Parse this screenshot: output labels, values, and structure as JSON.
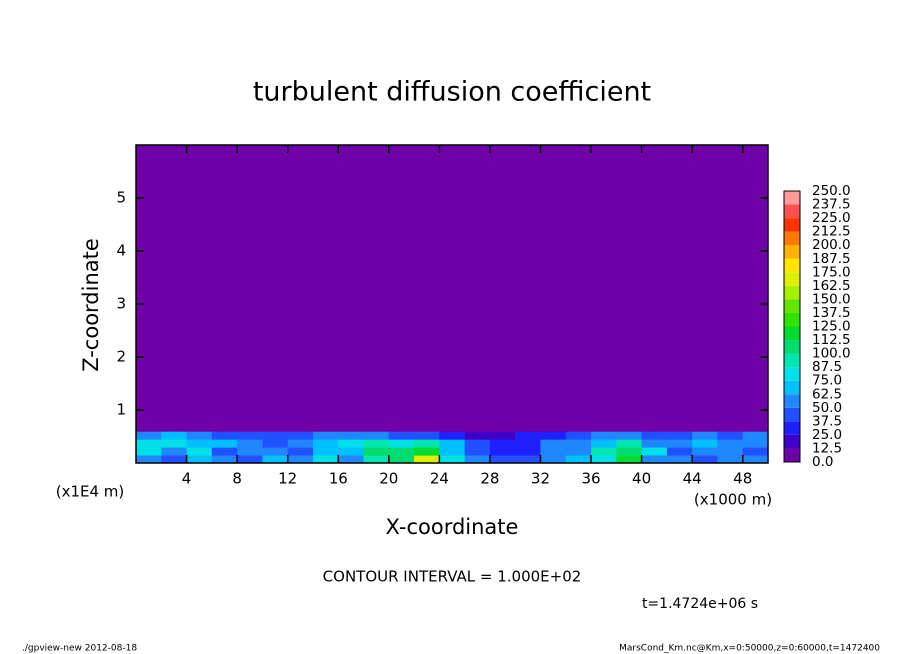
{
  "chart_data": {
    "type": "heatmap",
    "title": "turbulent diffusion coefficient",
    "xlabel": "X-coordinate",
    "ylabel": "Z-coordinate",
    "xunit": "(x1000 m)",
    "yunit": "(x1E4 m)",
    "xlim": [
      0,
      50
    ],
    "ylim": [
      0,
      6
    ],
    "xticks": [
      4,
      8,
      12,
      16,
      20,
      24,
      28,
      32,
      36,
      40,
      44,
      48
    ],
    "yticks": [
      1,
      2,
      3,
      4,
      5
    ],
    "x_edges": [
      0,
      2,
      4,
      6,
      8,
      10,
      12,
      14,
      16,
      18,
      20,
      22,
      24,
      26,
      28,
      30,
      32,
      34,
      36,
      38,
      40,
      42,
      44,
      46,
      48,
      50
    ],
    "z_edges": [
      0,
      0.15,
      0.3,
      0.45,
      0.6,
      6
    ],
    "values": [
      [
        60,
        45,
        70,
        55,
        40,
        65,
        50,
        75,
        60,
        95,
        110,
        170,
        80,
        55,
        45,
        40,
        60,
        70,
        85,
        120,
        60,
        50,
        45,
        55,
        50
      ],
      [
        75,
        60,
        80,
        45,
        55,
        50,
        40,
        65,
        70,
        100,
        105,
        115,
        70,
        45,
        35,
        30,
        50,
        55,
        90,
        110,
        75,
        40,
        60,
        50,
        45
      ],
      [
        80,
        85,
        70,
        65,
        50,
        45,
        60,
        70,
        80,
        90,
        85,
        95,
        65,
        40,
        30,
        35,
        55,
        60,
        70,
        95,
        60,
        50,
        65,
        55,
        60
      ],
      [
        55,
        65,
        50,
        45,
        40,
        40,
        45,
        50,
        55,
        60,
        45,
        40,
        30,
        20,
        15,
        25,
        30,
        45,
        50,
        55,
        45,
        40,
        50,
        45,
        50
      ],
      [
        5,
        5,
        5,
        5,
        5,
        5,
        5,
        5,
        5,
        5,
        5,
        5,
        5,
        5,
        5,
        5,
        5,
        5,
        5,
        5,
        5,
        5,
        5,
        5,
        5
      ]
    ],
    "levels": [
      {
        "value": 0,
        "label": "0.0"
      },
      12.5,
      {
        "value": 25,
        "label": "25.0"
      },
      37.5,
      {
        "value": 50,
        "label": "50.0"
      },
      62.5,
      {
        "value": 75,
        "label": "75.0"
      },
      87.5,
      {
        "value": 100,
        "label": "100.0"
      },
      112.5,
      {
        "value": 125,
        "label": "125.0"
      },
      137.5,
      {
        "value": 150,
        "label": "150.0"
      },
      162.5,
      {
        "value": 175,
        "label": "175.0"
      },
      187.5,
      {
        "value": 200,
        "label": "200.0"
      },
      212.5,
      {
        "value": 225,
        "label": "225.0"
      },
      237.5,
      {
        "value": 250,
        "label": "250.0"
      }
    ],
    "colors": [
      "#7000a8",
      "#4000c8",
      "#2020ff",
      "#2050ff",
      "#2088ff",
      "#00c0ff",
      "#00e0e8",
      "#00e6b0",
      "#00dc70",
      "#00dc30",
      "#30e400",
      "#60e600",
      "#a8f000",
      "#dcf000",
      "#ffe600",
      "#ffb400",
      "#ff7800",
      "#ff3200",
      "#ff5050",
      "#ff9a9a"
    ],
    "annotations": [
      "CONTOUR INTERVAL = 1.000E+02",
      "t=1.4724e+06 s"
    ],
    "footer_left": "./gpview-new   2012-08-18",
    "footer_right": "MarsCond_Km.nc@Km,x=0:50000,z=0:60000,t=1472400"
  }
}
